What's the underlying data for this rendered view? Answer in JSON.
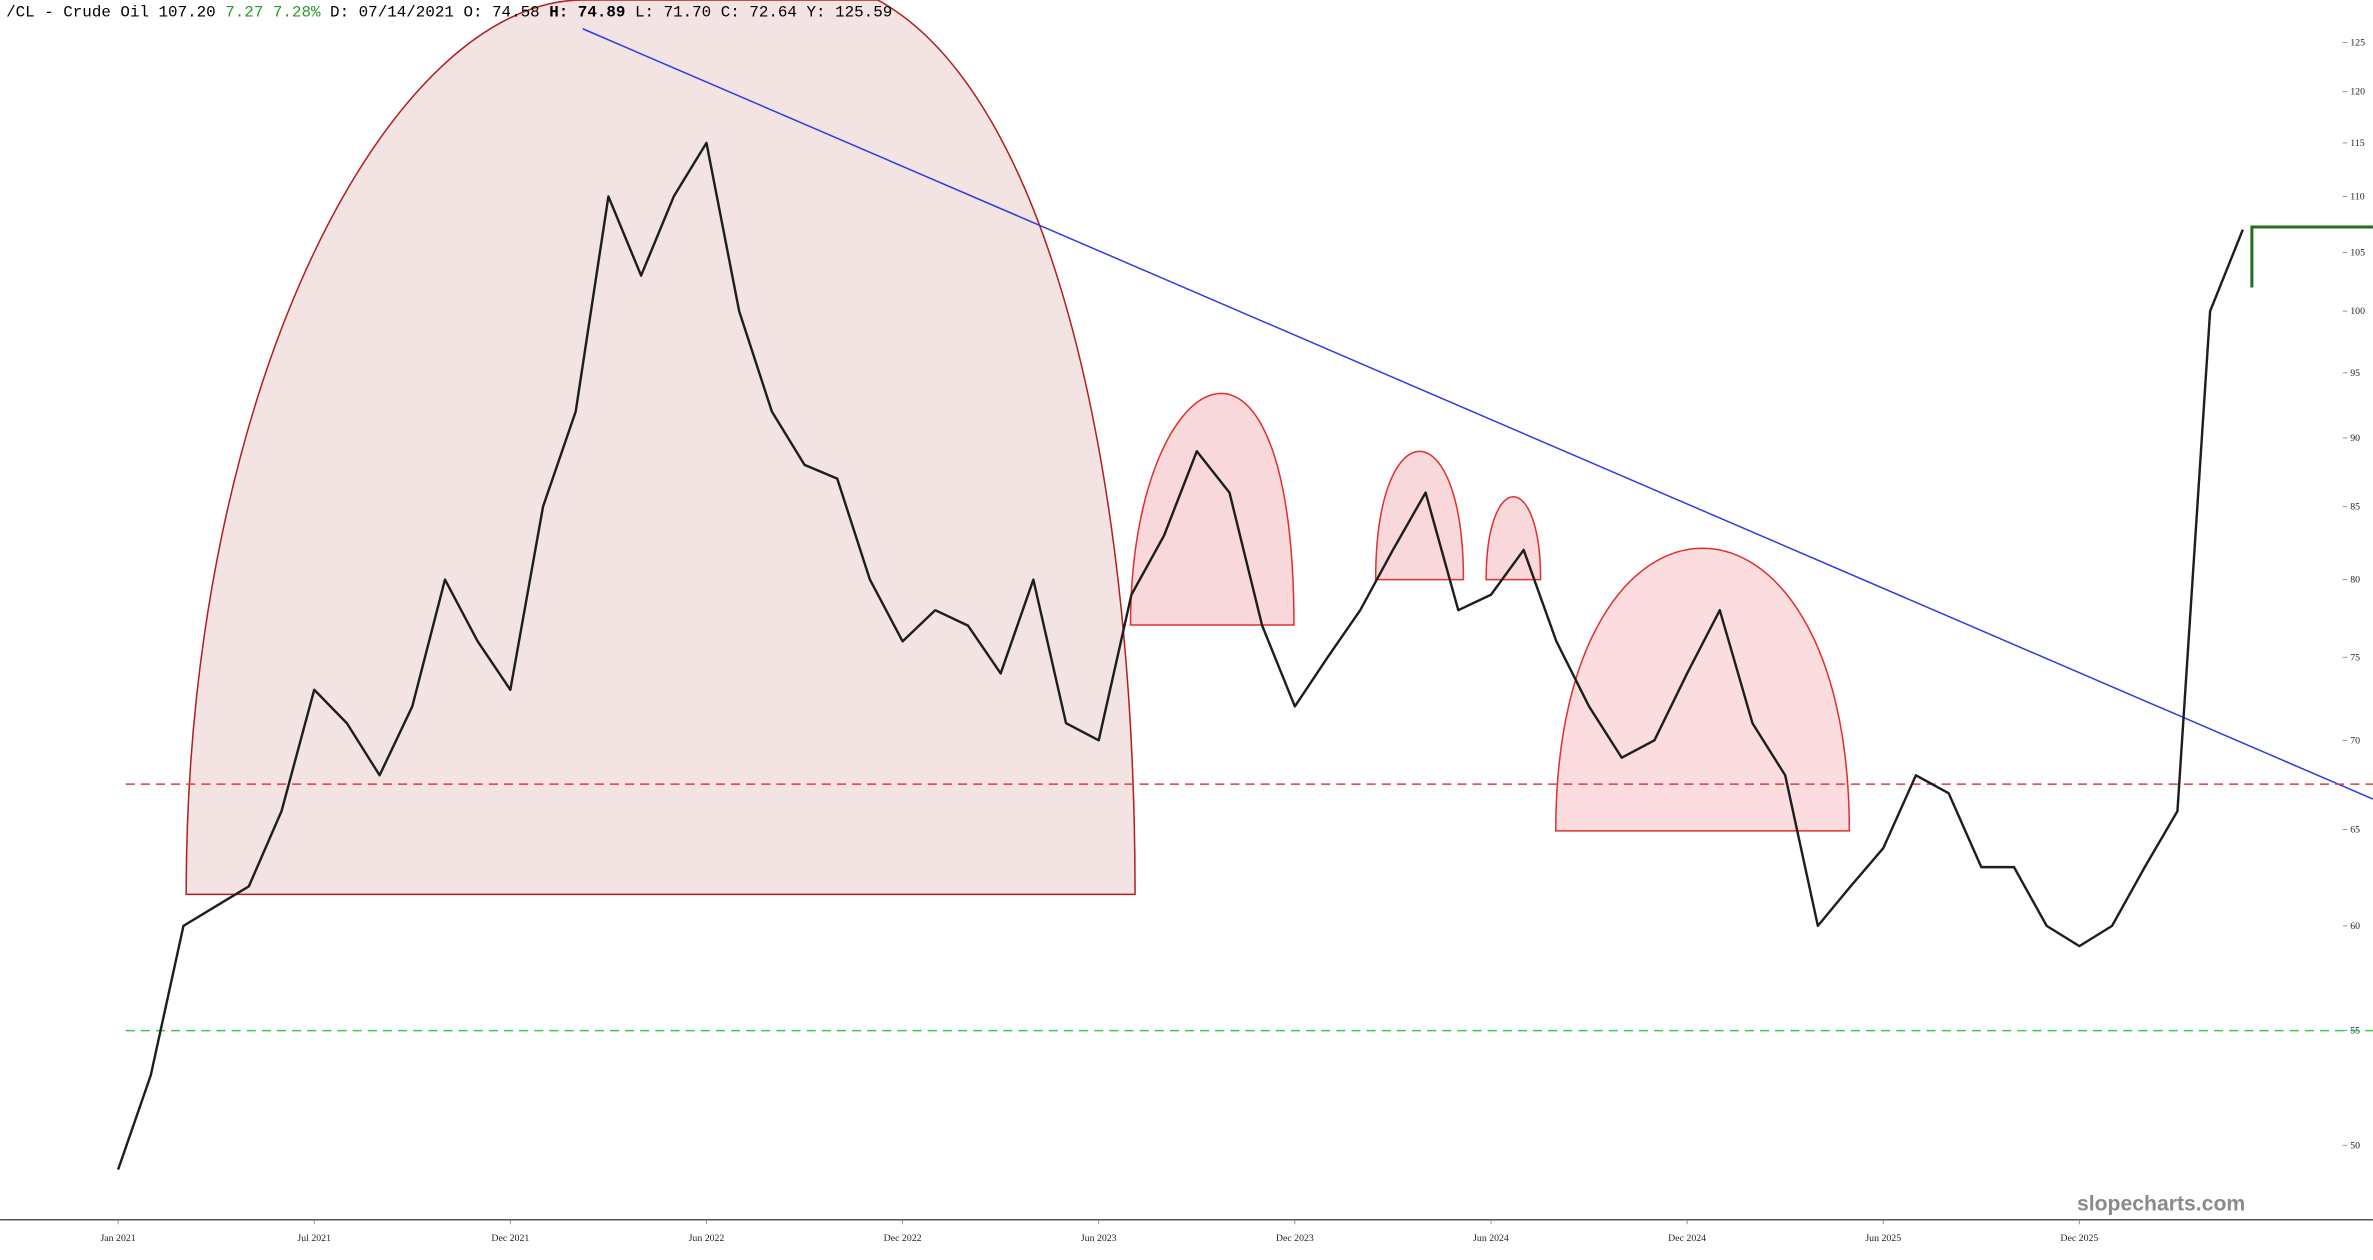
{
  "header": [
    "/CL - Crude Oil",
    "107.20",
    "7.27",
    "7.28%",
    "D:",
    "07/14/2021",
    "O:",
    "74.58",
    "H:",
    "74.89",
    "L:",
    "71.70",
    "C:",
    "72.64",
    "Y:",
    "125.59"
  ],
  "chart_data": {
    "type": "line",
    "color": "#1e1e1e",
    "log": true,
    "categories": [
      "Jan 2021",
      null,
      null,
      null,
      null,
      null,
      "Jul 2021",
      null,
      null,
      null,
      null,
      null,
      "Dec 2021",
      null,
      null,
      null,
      null,
      null,
      "Jun 2022",
      null,
      null,
      null,
      null,
      null,
      "Dec 2022",
      null,
      null,
      null,
      null,
      null,
      "Jun 2023",
      null,
      null,
      null,
      null,
      null,
      "Dec 2023",
      null,
      null,
      null,
      null,
      null,
      "Jun 2024",
      null,
      null,
      null,
      null,
      null,
      "Dec 2024",
      null,
      null,
      null,
      null,
      null,
      "Jun 2025",
      null,
      null,
      null,
      null,
      null,
      "Dec 2025",
      null,
      null,
      null,
      null,
      null
    ],
    "values": [
      49,
      53,
      60,
      61,
      62,
      66,
      73,
      71,
      68,
      72,
      80,
      76,
      73,
      85,
      92,
      110,
      103,
      110,
      115,
      100,
      92,
      88,
      87,
      80,
      76,
      78,
      77,
      74,
      80,
      71,
      70,
      79,
      83,
      89,
      86,
      77,
      72,
      75,
      78,
      82,
      86,
      78,
      79,
      82,
      76,
      72,
      69,
      70,
      74,
      78,
      71,
      68,
      60,
      62,
      64,
      68,
      67,
      63,
      63,
      60,
      59,
      60,
      63,
      66,
      100,
      107
    ],
    "ylim": [
      47,
      129.5
    ],
    "yticks": [
      50,
      55,
      60,
      65,
      70,
      75,
      80,
      85,
      90,
      95,
      100,
      105,
      110,
      115,
      120,
      125
    ],
    "hlines": [
      {
        "value": 67.5,
        "color": "#e03c3c"
      },
      {
        "value": 55,
        "color": "#3ccc3c"
      }
    ],
    "watermark": "slopecharts.com"
  }
}
